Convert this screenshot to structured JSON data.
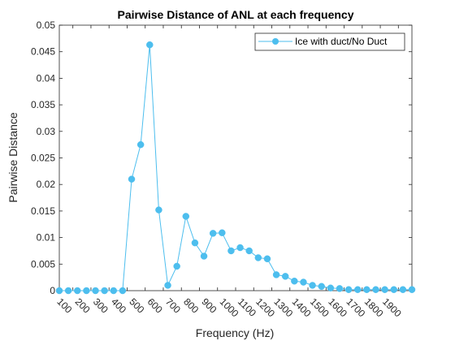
{
  "chart_data": {
    "type": "line",
    "title": "Pairwise Distance of ANL at each frequency",
    "xlabel": "Frequency (Hz)",
    "ylabel": "Pairwise Distance",
    "xlim": [
      25,
      1975
    ],
    "ylim": [
      0,
      0.05
    ],
    "x_ticks": [
      100,
      200,
      300,
      400,
      500,
      600,
      700,
      800,
      900,
      1000,
      1100,
      1200,
      1300,
      1400,
      1500,
      1600,
      1700,
      1800,
      1900
    ],
    "x_tick_labels": [
      "100",
      "200",
      "300",
      "400",
      "500",
      "600",
      "700",
      "800",
      "900",
      "1000",
      "1100",
      "1200",
      "1300",
      "1400",
      "1500",
      "1600",
      "1700",
      "1800",
      "1900"
    ],
    "y_ticks": [
      0,
      0.005,
      0.01,
      0.015,
      0.02,
      0.025,
      0.03,
      0.035,
      0.04,
      0.045,
      0.05
    ],
    "y_tick_labels": [
      "0",
      "0.005",
      "0.01",
      "0.015",
      "0.02",
      "0.025",
      "0.03",
      "0.035",
      "0.04",
      "0.045",
      "0.05"
    ],
    "grid": false,
    "legend_position": "top-right",
    "color": "#4dbeee",
    "series": [
      {
        "name": "Ice with duct/No Duct",
        "x": [
          25,
          75,
          125,
          175,
          225,
          275,
          325,
          375,
          425,
          475,
          525,
          575,
          625,
          675,
          725,
          775,
          825,
          875,
          925,
          975,
          1025,
          1075,
          1125,
          1175,
          1225,
          1275,
          1325,
          1375,
          1425,
          1475,
          1525,
          1575,
          1625,
          1675,
          1725,
          1775,
          1825,
          1875,
          1925,
          1975
        ],
        "values": [
          0,
          0,
          0,
          0,
          0,
          0,
          0,
          0,
          0.021,
          0.0275,
          0.0463,
          0.0152,
          0.001,
          0.0046,
          0.014,
          0.009,
          0.0065,
          0.0108,
          0.0109,
          0.0075,
          0.0081,
          0.0075,
          0.0062,
          0.006,
          0.003,
          0.0027,
          0.0018,
          0.0016,
          0.001,
          0.0008,
          0.0005,
          0.0004,
          0.0002,
          0.0002,
          0.0002,
          0.0002,
          0.0002,
          0.0002,
          0.0002,
          0.0002
        ]
      }
    ]
  }
}
